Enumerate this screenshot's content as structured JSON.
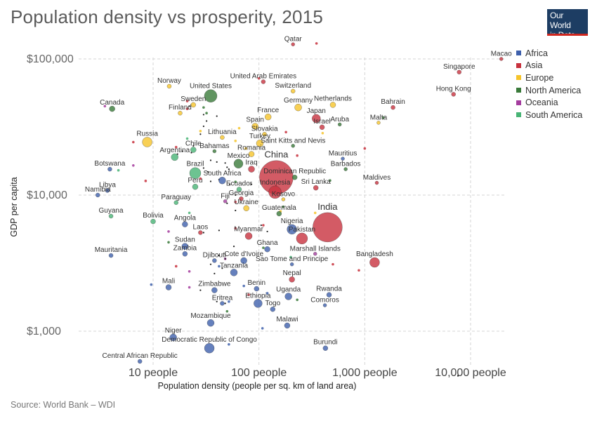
{
  "title": "Population density vs prosperity, 2015",
  "logo": {
    "line1": "Our World",
    "line2": "in Data"
  },
  "source": "Source: World Bank – WDI",
  "colors": {
    "Africa": "#3e60ac",
    "Asia": "#c8323e",
    "Europe": "#f6c42a",
    "North America": "#3a7a3a",
    "Oceania": "#a43c9e",
    "South America": "#48b475"
  },
  "chart_data": {
    "type": "scatter",
    "xlabel": "Population density (people per sq. km of land area)",
    "ylabel": "GDP per capita",
    "x_scale": "log",
    "y_scale": "log",
    "xlim": [
      4.2,
      20000
    ],
    "ylim": [
      480,
      140000
    ],
    "x_ticks": [
      {
        "value": 10,
        "label": "10 people"
      },
      {
        "value": 100,
        "label": "100 people"
      },
      {
        "value": 1000,
        "label": "1,000 people"
      },
      {
        "value": 10000,
        "label": "10,000 people"
      }
    ],
    "y_ticks": [
      {
        "value": 1000,
        "label": "$1,000"
      },
      {
        "value": 10000,
        "label": "$10,000"
      },
      {
        "value": 100000,
        "label": "$100,000"
      }
    ],
    "grid": true,
    "legend": {
      "placement": "top-right",
      "entries": [
        "Africa",
        "Asia",
        "Europe",
        "North America",
        "Oceania",
        "South America"
      ]
    },
    "points": [
      {
        "name": "Macao",
        "region": "Asia",
        "x": 19500,
        "y": 100000,
        "r": 2.5
      },
      {
        "name": "Singapore",
        "region": "Asia",
        "x": 7800,
        "y": 80000,
        "r": 3
      },
      {
        "name": "Hong Kong",
        "region": "Asia",
        "x": 6900,
        "y": 55000,
        "r": 3
      },
      {
        "name": "Qatar",
        "region": "Asia",
        "x": 210,
        "y": 128000,
        "r": 2.5
      },
      {
        "name": "United Arab Emirates",
        "region": "Asia",
        "x": 110,
        "y": 68000,
        "r": 3
      },
      {
        "name": "Norway",
        "region": "Europe",
        "x": 14.2,
        "y": 63000,
        "r": 3
      },
      {
        "name": "Switzerland",
        "region": "Europe",
        "x": 210,
        "y": 58000,
        "r": 3
      },
      {
        "name": "United States",
        "region": "North America",
        "x": 35,
        "y": 53500,
        "r": 9
      },
      {
        "name": "Canada",
        "region": "North America",
        "x": 4.1,
        "y": 43000,
        "r": 4
      },
      {
        "name": "Sweden",
        "region": "Europe",
        "x": 24,
        "y": 46000,
        "r": 3.5
      },
      {
        "name": "Finland",
        "region": "Europe",
        "x": 18,
        "y": 40000,
        "r": 3
      },
      {
        "name": "Netherlands",
        "region": "Europe",
        "x": 500,
        "y": 46000,
        "r": 4
      },
      {
        "name": "Germany",
        "region": "Europe",
        "x": 235,
        "y": 44000,
        "r": 5
      },
      {
        "name": "Bahrain",
        "region": "Asia",
        "x": 1850,
        "y": 44000,
        "r": 3
      },
      {
        "name": "France",
        "region": "Europe",
        "x": 122,
        "y": 37500,
        "r": 4.5
      },
      {
        "name": "Japan",
        "region": "Asia",
        "x": 348,
        "y": 36500,
        "r": 6
      },
      {
        "name": "Aruba",
        "region": "North America",
        "x": 580,
        "y": 33000,
        "r": 2.5
      },
      {
        "name": "Malta",
        "region": "Europe",
        "x": 1350,
        "y": 34000,
        "r": 2.5
      },
      {
        "name": "Israel",
        "region": "Asia",
        "x": 395,
        "y": 31500,
        "r": 3.5
      },
      {
        "name": "Spain",
        "region": "Europe",
        "x": 92,
        "y": 32000,
        "r": 4.5
      },
      {
        "name": "Slovakia",
        "region": "Europe",
        "x": 113,
        "y": 28000,
        "r": 3
      },
      {
        "name": "Lithuania",
        "region": "Europe",
        "x": 45,
        "y": 26500,
        "r": 3
      },
      {
        "name": "Russia",
        "region": "Europe",
        "x": 8.8,
        "y": 24500,
        "r": 7
      },
      {
        "name": "Saint Kitts and Nevis",
        "region": "North America",
        "x": 210,
        "y": 23000,
        "r": 2.5
      },
      {
        "name": "Turkey",
        "region": "Europe",
        "x": 102,
        "y": 24000,
        "r": 5
      },
      {
        "name": "Chile",
        "region": "South America",
        "x": 24,
        "y": 21500,
        "r": 4
      },
      {
        "name": "Bahamas",
        "region": "North America",
        "x": 38,
        "y": 21000,
        "r": 2.5
      },
      {
        "name": "Romania",
        "region": "Europe",
        "x": 85,
        "y": 20000,
        "r": 4
      },
      {
        "name": "Argentina",
        "region": "South America",
        "x": 16,
        "y": 19000,
        "r": 5
      },
      {
        "name": "Mauritius",
        "region": "Africa",
        "x": 620,
        "y": 18500,
        "r": 2.5
      },
      {
        "name": "Mexico",
        "region": "North America",
        "x": 64,
        "y": 17000,
        "r": 6.5
      },
      {
        "name": "Barbados",
        "region": "North America",
        "x": 660,
        "y": 15500,
        "r": 2.5
      },
      {
        "name": "Iraq",
        "region": "Asia",
        "x": 85,
        "y": 15500,
        "r": 4.5
      },
      {
        "name": "Botswana",
        "region": "Africa",
        "x": 3.9,
        "y": 15500,
        "r": 3
      },
      {
        "name": "Brazil",
        "region": "South America",
        "x": 25,
        "y": 14500,
        "r": 8
      },
      {
        "name": "China",
        "region": "Asia",
        "x": 146,
        "y": 13500,
        "r": 24
      },
      {
        "name": "Dominican Republic",
        "region": "North America",
        "x": 218,
        "y": 13500,
        "r": 3.5
      },
      {
        "name": "South Africa",
        "region": "Africa",
        "x": 45,
        "y": 12800,
        "r": 5
      },
      {
        "name": "Peru",
        "region": "South America",
        "x": 25,
        "y": 11500,
        "r": 4
      },
      {
        "name": "Maldives",
        "region": "Asia",
        "x": 1300,
        "y": 12300,
        "r": 2.5
      },
      {
        "name": "Sri Lanka",
        "region": "Asia",
        "x": 345,
        "y": 11300,
        "r": 3.5
      },
      {
        "name": "Indonesia",
        "region": "Asia",
        "x": 142,
        "y": 10500,
        "r": 9
      },
      {
        "name": "Ecuador",
        "region": "South America",
        "x": 65,
        "y": 11000,
        "r": 3.5
      },
      {
        "name": "Libya",
        "region": "Africa",
        "x": 3.7,
        "y": 10800,
        "r": 3
      },
      {
        "name": "Namibia",
        "region": "Africa",
        "x": 3.0,
        "y": 10000,
        "r": 3
      },
      {
        "name": "Georgia",
        "region": "Asia",
        "x": 68,
        "y": 9400,
        "r": 3
      },
      {
        "name": "Fiji",
        "region": "Oceania",
        "x": 48,
        "y": 9000,
        "r": 2.5
      },
      {
        "name": "Kosovo",
        "region": "Europe",
        "x": 170,
        "y": 9300,
        "r": 2.5
      },
      {
        "name": "Paraguay",
        "region": "South America",
        "x": 16.5,
        "y": 8800,
        "r": 3
      },
      {
        "name": "Ukraine",
        "region": "Europe",
        "x": 76,
        "y": 8000,
        "r": 4
      },
      {
        "name": "Guatemala",
        "region": "North America",
        "x": 155,
        "y": 7300,
        "r": 3.5
      },
      {
        "name": "Guyana",
        "region": "South America",
        "x": 4.0,
        "y": 7000,
        "r": 3
      },
      {
        "name": "Bolivia",
        "region": "South America",
        "x": 10,
        "y": 6400,
        "r": 3.5
      },
      {
        "name": "India",
        "region": "Asia",
        "x": 445,
        "y": 5800,
        "r": 21
      },
      {
        "name": "Angola",
        "region": "Africa",
        "x": 20,
        "y": 6100,
        "r": 4
      },
      {
        "name": "Nigeria",
        "region": "Africa",
        "x": 205,
        "y": 5600,
        "r": 7
      },
      {
        "name": "Laos",
        "region": "Asia",
        "x": 28,
        "y": 5300,
        "r": 3
      },
      {
        "name": "Myanmar",
        "region": "Asia",
        "x": 80,
        "y": 5000,
        "r": 5
      },
      {
        "name": "Pakistan",
        "region": "Asia",
        "x": 255,
        "y": 4800,
        "r": 8
      },
      {
        "name": "Sudan",
        "region": "Africa",
        "x": 20,
        "y": 4200,
        "r": 4.5
      },
      {
        "name": "Ghana",
        "region": "Africa",
        "x": 120,
        "y": 4000,
        "r": 4
      },
      {
        "name": "Zambia",
        "region": "Africa",
        "x": 20,
        "y": 3700,
        "r": 3.5
      },
      {
        "name": "Marshall Islands",
        "region": "Oceania",
        "x": 340,
        "y": 3700,
        "r": 2.5
      },
      {
        "name": "Mauritania",
        "region": "Africa",
        "x": 4.0,
        "y": 3600,
        "r": 3
      },
      {
        "name": "Bangladesh",
        "region": "Asia",
        "x": 1240,
        "y": 3200,
        "r": 7
      },
      {
        "name": "Sao Tome and Principe",
        "region": "Africa",
        "x": 205,
        "y": 3100,
        "r": 2.5
      },
      {
        "name": "Djibouti",
        "region": "Africa",
        "x": 38,
        "y": 3300,
        "r": 3
      },
      {
        "name": "Cote d'Ivoire",
        "region": "Africa",
        "x": 72,
        "y": 3300,
        "r": 4.5
      },
      {
        "name": "Tanzania",
        "region": "Africa",
        "x": 58,
        "y": 2700,
        "r": 5
      },
      {
        "name": "Nepal",
        "region": "Asia",
        "x": 205,
        "y": 2400,
        "r": 4
      },
      {
        "name": "Mali",
        "region": "Africa",
        "x": 14,
        "y": 2100,
        "r": 4
      },
      {
        "name": "Zimbabwe",
        "region": "Africa",
        "x": 38,
        "y": 2000,
        "r": 4
      },
      {
        "name": "Benin",
        "region": "Africa",
        "x": 95,
        "y": 2050,
        "r": 3.5
      },
      {
        "name": "Rwanda",
        "region": "Africa",
        "x": 460,
        "y": 1850,
        "r": 3.5
      },
      {
        "name": "Uganda",
        "region": "Africa",
        "x": 190,
        "y": 1800,
        "r": 5
      },
      {
        "name": "Eritrea",
        "region": "Africa",
        "x": 45,
        "y": 1600,
        "r": 3
      },
      {
        "name": "Ethiopia",
        "region": "Africa",
        "x": 98,
        "y": 1600,
        "r": 6
      },
      {
        "name": "Comoros",
        "region": "Africa",
        "x": 420,
        "y": 1550,
        "r": 2.5
      },
      {
        "name": "Togo",
        "region": "Africa",
        "x": 135,
        "y": 1450,
        "r": 3.5
      },
      {
        "name": "Mozambique",
        "region": "Africa",
        "x": 35,
        "y": 1150,
        "r": 5
      },
      {
        "name": "Malawi",
        "region": "Africa",
        "x": 185,
        "y": 1100,
        "r": 4
      },
      {
        "name": "Niger",
        "region": "Africa",
        "x": 15.5,
        "y": 900,
        "r": 5
      },
      {
        "name": "Democratic Republic of Congo",
        "region": "Africa",
        "x": 34,
        "y": 750,
        "r": 7
      },
      {
        "name": "Burundi",
        "region": "Africa",
        "x": 425,
        "y": 750,
        "r": 3.5
      },
      {
        "name": "Central African Republic",
        "region": "Africa",
        "x": 7.5,
        "y": 600,
        "r": 3
      }
    ],
    "small_points": [
      {
        "region": "Asia",
        "x": 350,
        "y": 130000
      },
      {
        "region": "Asia",
        "x": 100,
        "y": 72000
      },
      {
        "region": "Asia",
        "x": 21,
        "y": 49000
      },
      {
        "region": "Asia",
        "x": 21,
        "y": 43000
      },
      {
        "region": "Oceania",
        "x": 3.5,
        "y": 45000
      },
      {
        "region": "North America",
        "x": 30,
        "y": 44000
      },
      {
        "region": "North America",
        "x": 32,
        "y": 40000
      },
      {
        "region": "Asia",
        "x": 6.5,
        "y": 24500
      },
      {
        "region": "Oceania",
        "x": 6.5,
        "y": 16500
      },
      {
        "region": "Asia",
        "x": 16.5,
        "y": 22500
      },
      {
        "region": "South America",
        "x": 21,
        "y": 26000
      },
      {
        "region": "Europe",
        "x": 60,
        "y": 25000
      },
      {
        "region": "Europe",
        "x": 75,
        "y": 22000
      },
      {
        "region": "Europe",
        "x": 65,
        "y": 31000
      },
      {
        "region": "Europe",
        "x": 28,
        "y": 29500
      },
      {
        "region": "Asia",
        "x": 180,
        "y": 29000
      },
      {
        "region": "Asia",
        "x": 230,
        "y": 19500
      },
      {
        "region": "Europe",
        "x": 400,
        "y": 28500
      },
      {
        "region": "North America",
        "x": 1500,
        "y": 37000
      },
      {
        "region": "Asia",
        "x": 1000,
        "y": 22000
      },
      {
        "region": "North America",
        "x": 470,
        "y": 12800
      },
      {
        "region": "South America",
        "x": 4.7,
        "y": 15200
      },
      {
        "region": "Asia",
        "x": 8.5,
        "y": 12700
      },
      {
        "region": "Asia",
        "x": 28,
        "y": 13200
      },
      {
        "region": "North America",
        "x": 60,
        "y": 12500
      },
      {
        "region": "Asia",
        "x": 60,
        "y": 8900
      },
      {
        "region": "South America",
        "x": 22,
        "y": 7400
      },
      {
        "region": "Europe",
        "x": 160,
        "y": 7600
      },
      {
        "region": "Europe",
        "x": 340,
        "y": 7400
      },
      {
        "region": "North America",
        "x": 170,
        "y": 8200
      },
      {
        "region": "Asia",
        "x": 110,
        "y": 6000
      },
      {
        "region": "Oceania",
        "x": 14,
        "y": 5400
      },
      {
        "region": "North America",
        "x": 14,
        "y": 4500
      },
      {
        "region": "Asia",
        "x": 60,
        "y": 5700
      },
      {
        "region": "North America",
        "x": 110,
        "y": 4100
      },
      {
        "region": "Oceania",
        "x": 22,
        "y": 2750
      },
      {
        "region": "Oceania",
        "x": 22,
        "y": 2100
      },
      {
        "region": "Africa",
        "x": 9.6,
        "y": 2200
      },
      {
        "region": "Africa",
        "x": 42,
        "y": 3000
      },
      {
        "region": "Asia",
        "x": 16.5,
        "y": 3000
      },
      {
        "region": "Africa",
        "x": 72,
        "y": 2150
      },
      {
        "region": "Asia",
        "x": 80,
        "y": 1850
      },
      {
        "region": "Africa",
        "x": 120,
        "y": 1900
      },
      {
        "region": "South America",
        "x": 200,
        "y": 3500
      },
      {
        "region": "Asia",
        "x": 500,
        "y": 3100
      },
      {
        "region": "Asia",
        "x": 880,
        "y": 2800
      },
      {
        "region": "Africa",
        "x": 52,
        "y": 1650
      },
      {
        "region": "North America",
        "x": 50,
        "y": 1400
      },
      {
        "region": "Africa",
        "x": 52,
        "y": 800
      },
      {
        "region": "Africa",
        "x": 108,
        "y": 1050
      },
      {
        "region": "Oceania",
        "x": 48,
        "y": 3400
      },
      {
        "region": "North America",
        "x": 230,
        "y": 1700
      }
    ],
    "black_dots": [
      [
        22,
        45000
      ],
      [
        30,
        39000
      ],
      [
        40,
        38000
      ],
      [
        32,
        35000
      ],
      [
        30,
        32000
      ],
      [
        28,
        28000
      ],
      [
        24,
        23000
      ],
      [
        19,
        21000
      ],
      [
        17,
        20000
      ],
      [
        23,
        20500
      ],
      [
        35,
        18000
      ],
      [
        40,
        17500
      ],
      [
        48,
        17200
      ],
      [
        30,
        15800
      ],
      [
        33,
        14800
      ],
      [
        50,
        16000
      ],
      [
        52,
        15500
      ],
      [
        42,
        13000
      ],
      [
        35,
        12600
      ],
      [
        53,
        12000
      ],
      [
        85,
        12000
      ],
      [
        145,
        11800
      ],
      [
        60,
        10000
      ],
      [
        50,
        8700
      ],
      [
        60,
        7700
      ],
      [
        105,
        6000
      ],
      [
        120,
        5400
      ],
      [
        30,
        5300
      ],
      [
        42,
        5500
      ],
      [
        58,
        4200
      ],
      [
        42,
        3600
      ],
      [
        48,
        3400
      ],
      [
        35,
        3100
      ],
      [
        45,
        2900
      ],
      [
        38,
        2650
      ],
      [
        28,
        2000
      ],
      [
        40,
        1650
      ],
      [
        48,
        1600
      ],
      [
        7600,
        470
      ]
    ]
  }
}
